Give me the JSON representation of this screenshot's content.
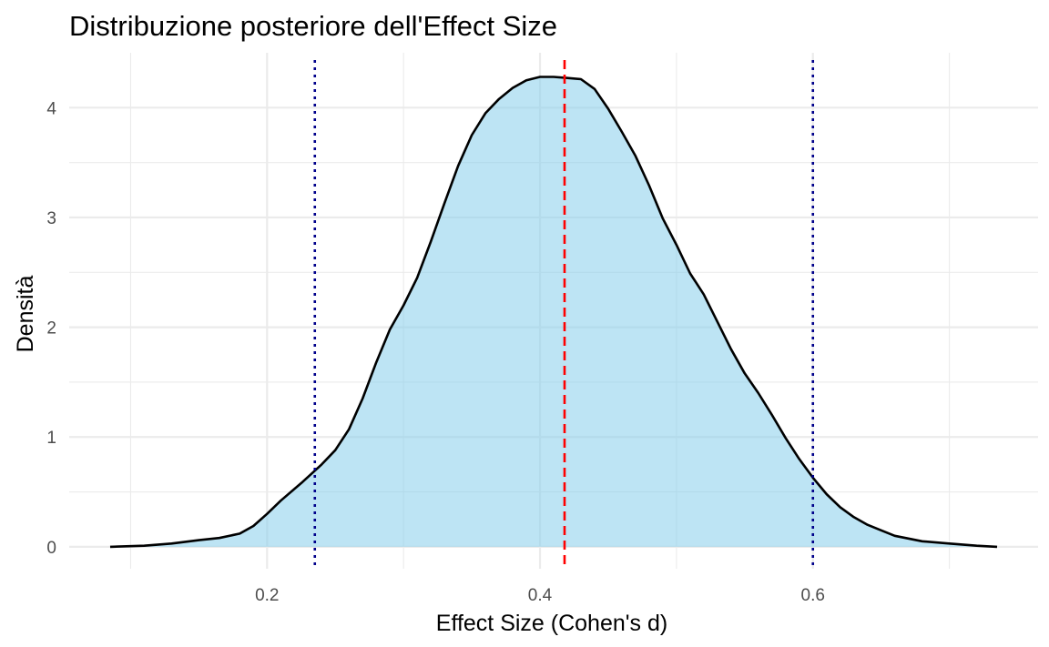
{
  "chart_data": {
    "type": "area",
    "title": "Distribuzione posteriore dell'Effect Size",
    "xlabel": "Effect Size (Cohen's d)",
    "ylabel": "Densità",
    "xlim": [
      0.055,
      0.765
    ],
    "ylim": [
      -0.2,
      4.5
    ],
    "x_ticks": [
      0.2,
      0.4,
      0.6
    ],
    "x_tick_labels": [
      "0.2",
      "0.4",
      "0.6"
    ],
    "x_minor_ticks": [
      0.1,
      0.3,
      0.5,
      0.7
    ],
    "y_ticks": [
      0,
      1,
      2,
      3,
      4
    ],
    "y_tick_labels": [
      "0",
      "1",
      "2",
      "3",
      "4"
    ],
    "y_minor_ticks": [
      0.5,
      1.5,
      2.5,
      3.5
    ],
    "grid": true,
    "series": [
      {
        "fill": "#87ceeb",
        "fill_opacity": 0.55,
        "stroke": "#000000",
        "x": [
          0.085,
          0.11,
          0.13,
          0.15,
          0.165,
          0.18,
          0.19,
          0.2,
          0.21,
          0.225,
          0.24,
          0.25,
          0.26,
          0.27,
          0.28,
          0.29,
          0.3,
          0.31,
          0.32,
          0.33,
          0.34,
          0.35,
          0.36,
          0.37,
          0.38,
          0.39,
          0.4,
          0.41,
          0.42,
          0.43,
          0.44,
          0.45,
          0.46,
          0.47,
          0.48,
          0.49,
          0.5,
          0.51,
          0.52,
          0.53,
          0.54,
          0.55,
          0.56,
          0.57,
          0.58,
          0.59,
          0.6,
          0.61,
          0.62,
          0.63,
          0.64,
          0.65,
          0.66,
          0.68,
          0.7,
          0.72,
          0.735
        ],
        "y": [
          0.0,
          0.01,
          0.03,
          0.06,
          0.08,
          0.12,
          0.19,
          0.3,
          0.42,
          0.58,
          0.75,
          0.88,
          1.07,
          1.35,
          1.68,
          1.98,
          2.2,
          2.45,
          2.78,
          3.13,
          3.47,
          3.75,
          3.95,
          4.08,
          4.18,
          4.25,
          4.28,
          4.28,
          4.27,
          4.26,
          4.17,
          3.99,
          3.78,
          3.56,
          3.29,
          2.99,
          2.75,
          2.49,
          2.3,
          2.05,
          1.8,
          1.58,
          1.4,
          1.2,
          0.99,
          0.8,
          0.63,
          0.48,
          0.36,
          0.27,
          0.2,
          0.15,
          0.1,
          0.05,
          0.03,
          0.01,
          0.0
        ]
      }
    ],
    "vlines": [
      {
        "x": 0.418,
        "color": "#ff0000",
        "linetype": "dashed"
      },
      {
        "x": 0.235,
        "color": "#00008b",
        "linetype": "dotted"
      },
      {
        "x": 0.6,
        "color": "#00008b",
        "linetype": "dotted"
      }
    ]
  }
}
